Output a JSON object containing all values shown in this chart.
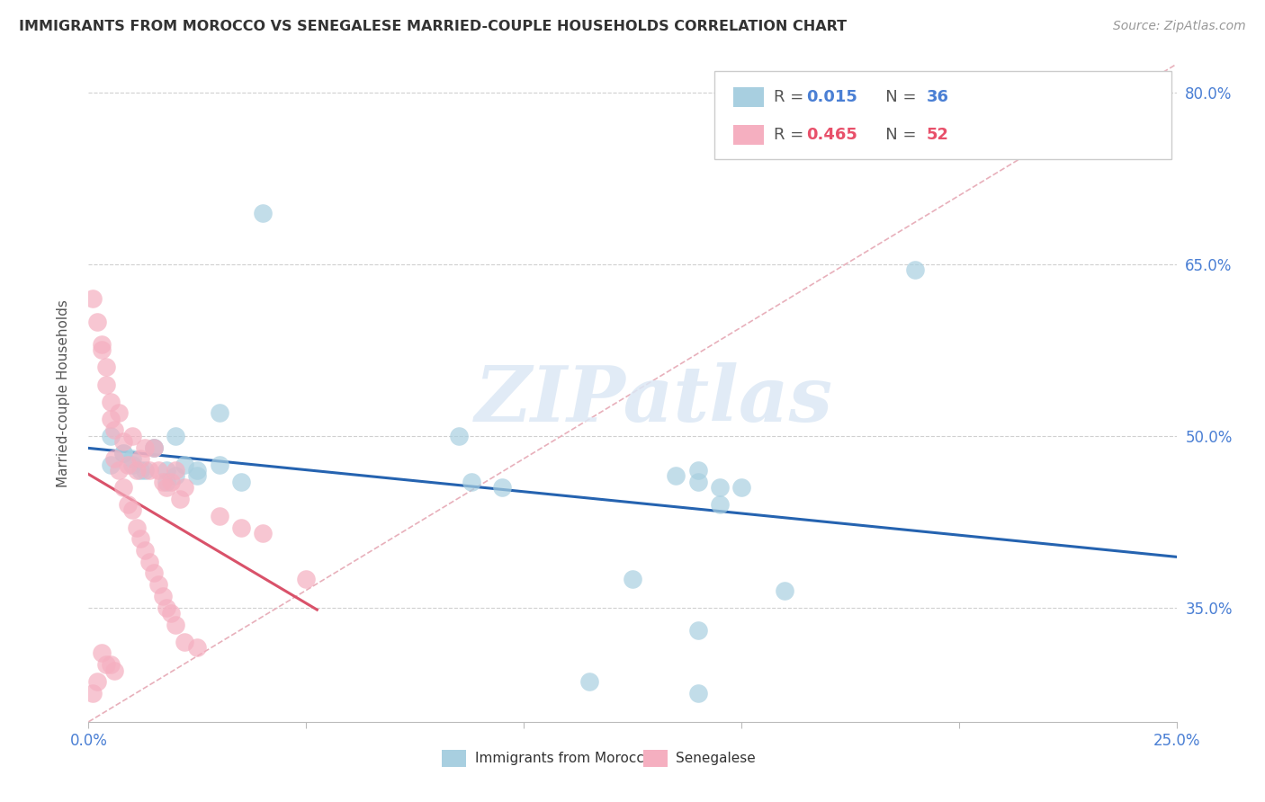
{
  "title": "IMMIGRANTS FROM MOROCCO VS SENEGALESE MARRIED-COUPLE HOUSEHOLDS CORRELATION CHART",
  "source": "Source: ZipAtlas.com",
  "ylabel": "Married-couple Households",
  "xlim": [
    0.0,
    0.25
  ],
  "ylim": [
    0.25,
    0.825
  ],
  "y_ticks": [
    0.35,
    0.5,
    0.65,
    0.8
  ],
  "y_tick_labels": [
    "35.0%",
    "50.0%",
    "65.0%",
    "80.0%"
  ],
  "color_morocco": "#a8cfe0",
  "color_senegalese": "#f5afc0",
  "color_line_morocco": "#2563b0",
  "color_line_senegalese": "#d9526a",
  "color_diag": "#e8b0bb",
  "watermark_text": "ZIPatlas",
  "legend_label1": "Immigrants from Morocco",
  "legend_label2": "Senegalese",
  "morocco_x": [
    0.04,
    0.19,
    0.085,
    0.14,
    0.125,
    0.16,
    0.145,
    0.145,
    0.115,
    0.095,
    0.088,
    0.14,
    0.005,
    0.008,
    0.01,
    0.012,
    0.015,
    0.018,
    0.02,
    0.022,
    0.025,
    0.03,
    0.035,
    0.005,
    0.008,
    0.01,
    0.013,
    0.015,
    0.018,
    0.02,
    0.025,
    0.03,
    0.135,
    0.14,
    0.15,
    0.14
  ],
  "morocco_y": [
    0.695,
    0.645,
    0.5,
    0.33,
    0.375,
    0.365,
    0.44,
    0.455,
    0.285,
    0.455,
    0.46,
    0.275,
    0.5,
    0.485,
    0.475,
    0.47,
    0.49,
    0.46,
    0.5,
    0.475,
    0.465,
    0.52,
    0.46,
    0.475,
    0.485,
    0.48,
    0.47,
    0.49,
    0.47,
    0.465,
    0.47,
    0.475,
    0.465,
    0.46,
    0.455,
    0.47
  ],
  "senegalese_x": [
    0.001,
    0.002,
    0.003,
    0.004,
    0.005,
    0.006,
    0.007,
    0.008,
    0.009,
    0.01,
    0.011,
    0.012,
    0.013,
    0.014,
    0.015,
    0.016,
    0.017,
    0.018,
    0.019,
    0.02,
    0.021,
    0.022,
    0.003,
    0.004,
    0.005,
    0.006,
    0.007,
    0.008,
    0.009,
    0.01,
    0.011,
    0.012,
    0.013,
    0.014,
    0.015,
    0.016,
    0.017,
    0.018,
    0.019,
    0.02,
    0.022,
    0.025,
    0.03,
    0.035,
    0.04,
    0.05,
    0.001,
    0.002,
    0.003,
    0.004,
    0.005,
    0.006
  ],
  "senegalese_y": [
    0.62,
    0.6,
    0.58,
    0.56,
    0.53,
    0.505,
    0.52,
    0.495,
    0.475,
    0.5,
    0.47,
    0.48,
    0.49,
    0.47,
    0.49,
    0.47,
    0.46,
    0.455,
    0.46,
    0.47,
    0.445,
    0.455,
    0.575,
    0.545,
    0.515,
    0.48,
    0.47,
    0.455,
    0.44,
    0.435,
    0.42,
    0.41,
    0.4,
    0.39,
    0.38,
    0.37,
    0.36,
    0.35,
    0.345,
    0.335,
    0.32,
    0.315,
    0.43,
    0.42,
    0.415,
    0.375,
    0.275,
    0.285,
    0.31,
    0.3,
    0.3,
    0.295
  ]
}
